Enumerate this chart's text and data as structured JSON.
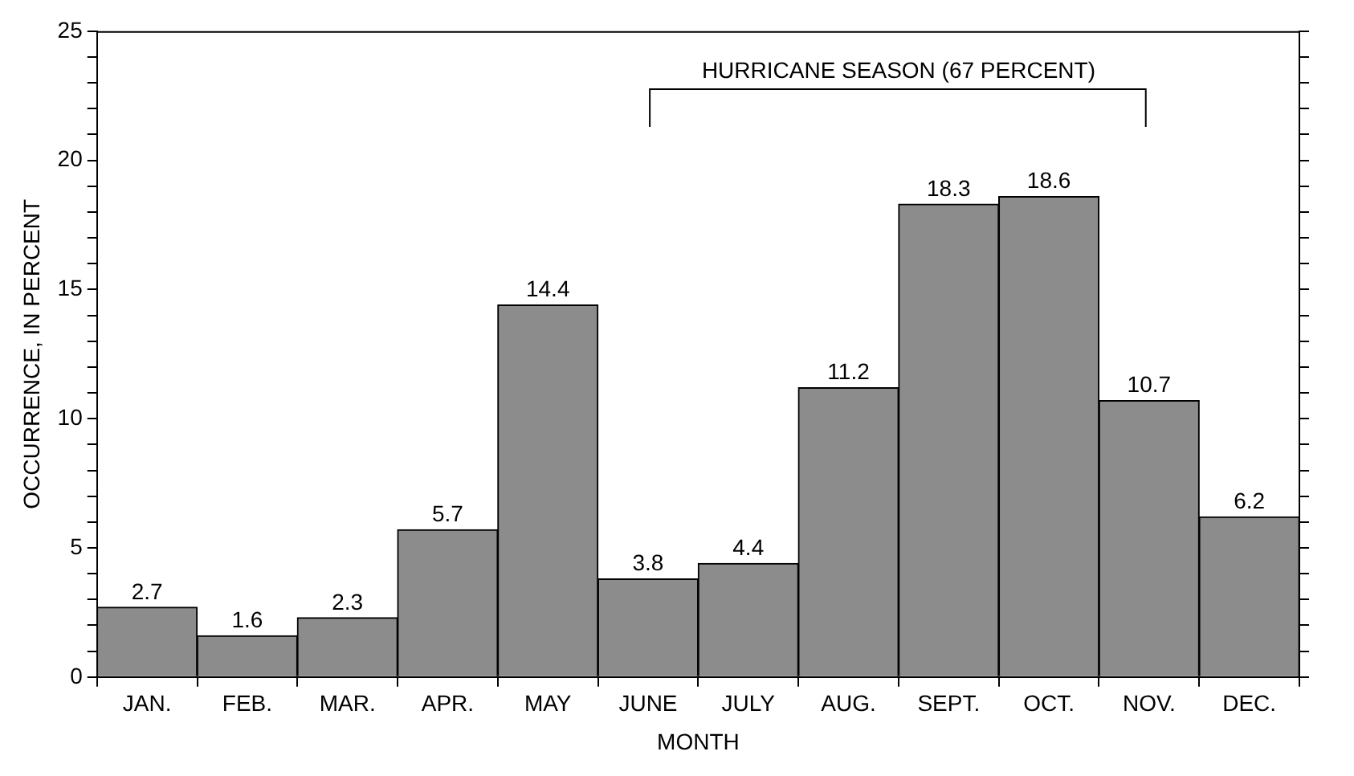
{
  "chart_data": {
    "type": "bar",
    "xlabel": "MONTH",
    "ylabel": "OCCURRENCE, IN PERCENT",
    "categories": [
      "JAN.",
      "FEB.",
      "MAR.",
      "APR.",
      "MAY",
      "JUNE",
      "JULY",
      "AUG.",
      "SEPT.",
      "OCT.",
      "NOV.",
      "DEC."
    ],
    "values": [
      2.7,
      1.6,
      2.3,
      5.7,
      14.4,
      3.8,
      4.4,
      11.2,
      18.3,
      18.6,
      10.7,
      6.2
    ],
    "color": "#8c8c8c",
    "ylim": [
      0,
      25
    ],
    "yticks": [
      0,
      {
        "value": 1,
        "label": null
      },
      {
        "value": 2,
        "label": null
      },
      {
        "value": 3,
        "label": null
      },
      {
        "value": 4,
        "label": null
      },
      5,
      {
        "value": 6,
        "label": null
      },
      {
        "value": 7,
        "label": null
      },
      {
        "value": 8,
        "label": null
      },
      {
        "value": 9,
        "label": null
      },
      10,
      {
        "value": 11,
        "label": null
      },
      {
        "value": 12,
        "label": null
      },
      {
        "value": 13,
        "label": null
      },
      {
        "value": 14,
        "label": null
      },
      15,
      {
        "value": 16,
        "label": null
      },
      {
        "value": 17,
        "label": null
      },
      {
        "value": 18,
        "label": null
      },
      {
        "value": 19,
        "label": null
      },
      20,
      {
        "value": 21,
        "label": null
      },
      {
        "value": 22,
        "label": null
      },
      {
        "value": 23,
        "label": null
      },
      {
        "value": 24,
        "label": null
      },
      25
    ],
    "annotations": [
      "HURRICANE SEASON (67 PERCENT)"
    ],
    "data_labels": true,
    "grid": false,
    "legend": false
  }
}
